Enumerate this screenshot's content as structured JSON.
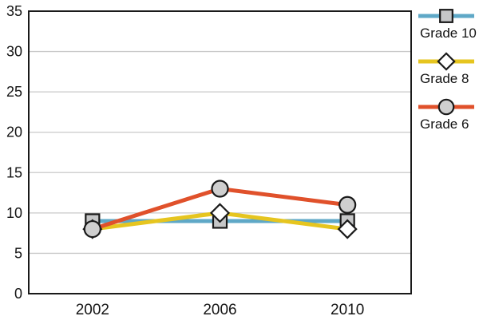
{
  "chart_data": {
    "type": "line",
    "categories": [
      "2002",
      "2006",
      "2010"
    ],
    "series": [
      {
        "name": "Grade 10",
        "values": [
          9,
          9,
          9
        ],
        "color": "#5FA8C7",
        "marker": "square",
        "marker_fill": "#C6C7C8"
      },
      {
        "name": "Grade 8",
        "values": [
          8,
          10,
          8
        ],
        "color": "#E6C51F",
        "marker": "diamond",
        "marker_fill": "#FFFFFF"
      },
      {
        "name": "Grade 6",
        "values": [
          8,
          13,
          11
        ],
        "color": "#E0512B",
        "marker": "circle",
        "marker_fill": "#CFCFCF"
      }
    ],
    "title": "",
    "xlabel": "",
    "ylabel": "",
    "ylim": [
      0,
      35
    ],
    "yticks": [
      0,
      5,
      10,
      15,
      20,
      25,
      30,
      35
    ],
    "grid": true,
    "legend_position": "right",
    "style": {
      "grid_color": "#C9C9C9",
      "border_color": "#1A1A1A",
      "marker_stroke": "#1A1A1A",
      "text_color": "#141414",
      "background": "#FFFFFF",
      "line_width": 5
    }
  }
}
